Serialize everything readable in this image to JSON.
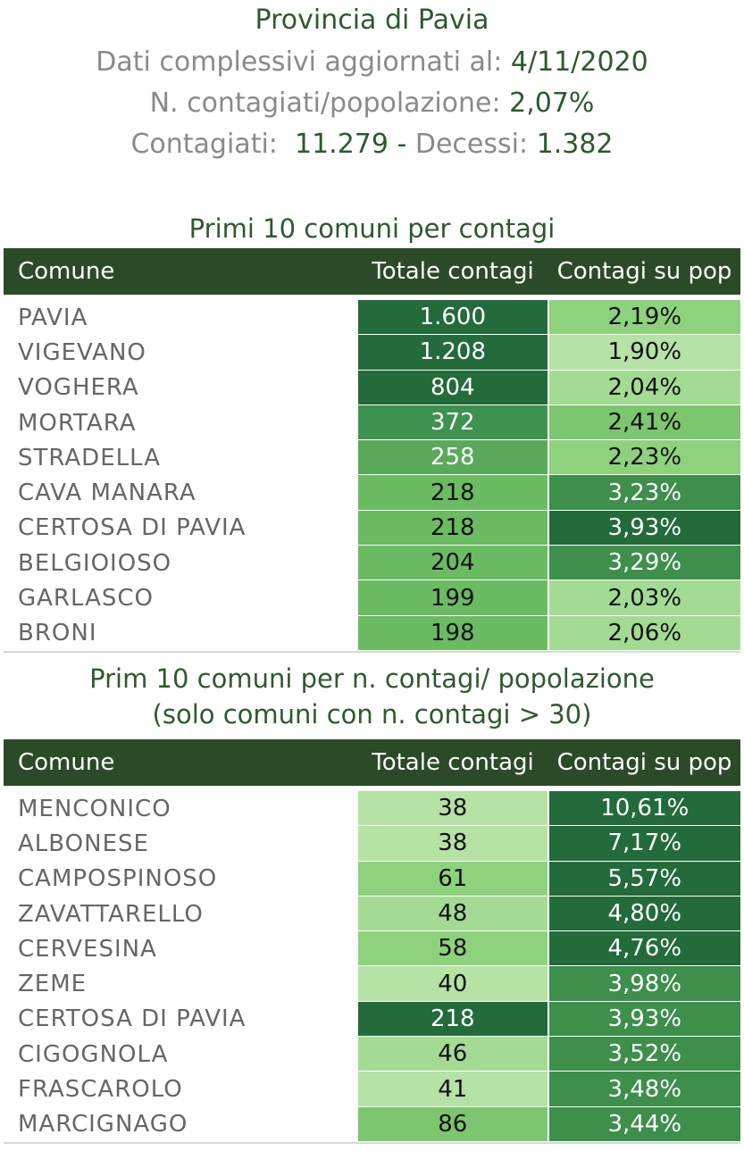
{
  "header": {
    "title": "Provincia di Pavia",
    "updated_label": "Dati complessivi aggiornati al: ",
    "updated_value": "4/11/2020",
    "ratio_label": "N. contagiati/popolazione: ",
    "ratio_value": "2,07%",
    "cases_label": "Contagiati:  ",
    "cases_value": "11.279",
    "sep": " - ",
    "deaths_label": "Decessi: ",
    "deaths_value": "1.382"
  },
  "table1": {
    "title": "Primi 10 comuni per contagi",
    "columns": [
      "Comune",
      "Totale contagi",
      "Contagi su pop"
    ],
    "rows": [
      {
        "comune": "PAVIA",
        "totale": "1.600",
        "pct": "2,19%",
        "c2": "#236b3b",
        "c3": "#8ed27e",
        "t2": "#ffffff",
        "t3": "#111111"
      },
      {
        "comune": "VIGEVANO",
        "totale": "1.208",
        "pct": "1,90%",
        "c2": "#236b3b",
        "c3": "#b5e2a5",
        "t2": "#ffffff",
        "t3": "#111111"
      },
      {
        "comune": "VOGHERA",
        "totale": "804",
        "pct": "2,04%",
        "c2": "#236b3b",
        "c3": "#a4db94",
        "t2": "#ffffff",
        "t3": "#111111"
      },
      {
        "comune": "MORTARA",
        "totale": "372",
        "pct": "2,41%",
        "c2": "#3f9150",
        "c3": "#7cc66f",
        "t2": "#ffffff",
        "t3": "#111111"
      },
      {
        "comune": "STRADELLA",
        "totale": "258",
        "pct": "2,23%",
        "c2": "#5aa95a",
        "c3": "#8ed27e",
        "t2": "#ffffff",
        "t3": "#111111"
      },
      {
        "comune": "CAVA MANARA",
        "totale": "218",
        "pct": "3,23%",
        "c2": "#6bbb63",
        "c3": "#3d8f4b",
        "t2": "#111111",
        "t3": "#ffffff"
      },
      {
        "comune": "CERTOSA DI PAVIA",
        "totale": "218",
        "pct": "3,93%",
        "c2": "#6bbb63",
        "c3": "#236b3b",
        "t2": "#111111",
        "t3": "#ffffff"
      },
      {
        "comune": "BELGIOIOSO",
        "totale": "204",
        "pct": "3,29%",
        "c2": "#6bbb63",
        "c3": "#3d8f4b",
        "t2": "#111111",
        "t3": "#ffffff"
      },
      {
        "comune": "GARLASCO",
        "totale": "199",
        "pct": "2,03%",
        "c2": "#6bbb63",
        "c3": "#a4db94",
        "t2": "#111111",
        "t3": "#111111"
      },
      {
        "comune": "BRONI",
        "totale": "198",
        "pct": "2,06%",
        "c2": "#6bbb63",
        "c3": "#a4db94",
        "t2": "#111111",
        "t3": "#111111"
      }
    ]
  },
  "table2": {
    "title_line1": "Prim 10 comuni per n. contagi/ popolazione",
    "title_line2": "(solo comuni con n. contagi > 30)",
    "columns": [
      "Comune",
      "Totale contagi",
      "Contagi su pop"
    ],
    "rows": [
      {
        "comune": "MENCONICO",
        "totale": "38",
        "pct": "10,61%",
        "c2": "#b5e2a5",
        "c3": "#236b3b",
        "t2": "#111111",
        "t3": "#ffffff"
      },
      {
        "comune": "ALBONESE",
        "totale": "38",
        "pct": "7,17%",
        "c2": "#b5e2a5",
        "c3": "#236b3b",
        "t2": "#111111",
        "t3": "#ffffff"
      },
      {
        "comune": "CAMPOSPINOSO",
        "totale": "61",
        "pct": "5,57%",
        "c2": "#8ed27e",
        "c3": "#236b3b",
        "t2": "#111111",
        "t3": "#ffffff"
      },
      {
        "comune": "ZAVATTARELLO",
        "totale": "48",
        "pct": "4,80%",
        "c2": "#a4db94",
        "c3": "#236b3b",
        "t2": "#111111",
        "t3": "#ffffff"
      },
      {
        "comune": "CERVESINA",
        "totale": "58",
        "pct": "4,76%",
        "c2": "#8ed27e",
        "c3": "#236b3b",
        "t2": "#111111",
        "t3": "#ffffff"
      },
      {
        "comune": "ZEME",
        "totale": "40",
        "pct": "3,98%",
        "c2": "#b5e2a5",
        "c3": "#3d8f4b",
        "t2": "#111111",
        "t3": "#ffffff"
      },
      {
        "comune": "CERTOSA DI PAVIA",
        "totale": "218",
        "pct": "3,93%",
        "c2": "#236b3b",
        "c3": "#3d8f4b",
        "t2": "#ffffff",
        "t3": "#ffffff"
      },
      {
        "comune": "CIGOGNOLA",
        "totale": "46",
        "pct": "3,52%",
        "c2": "#a4db94",
        "c3": "#3d8f4b",
        "t2": "#111111",
        "t3": "#ffffff"
      },
      {
        "comune": "FRASCAROLO",
        "totale": "41",
        "pct": "3,48%",
        "c2": "#b5e2a5",
        "c3": "#3d8f4b",
        "t2": "#111111",
        "t3": "#ffffff"
      },
      {
        "comune": "MARCIGNAGO",
        "totale": "86",
        "pct": "3,44%",
        "c2": "#7cc66f",
        "c3": "#3d8f4b",
        "t2": "#111111",
        "t3": "#ffffff"
      }
    ]
  }
}
